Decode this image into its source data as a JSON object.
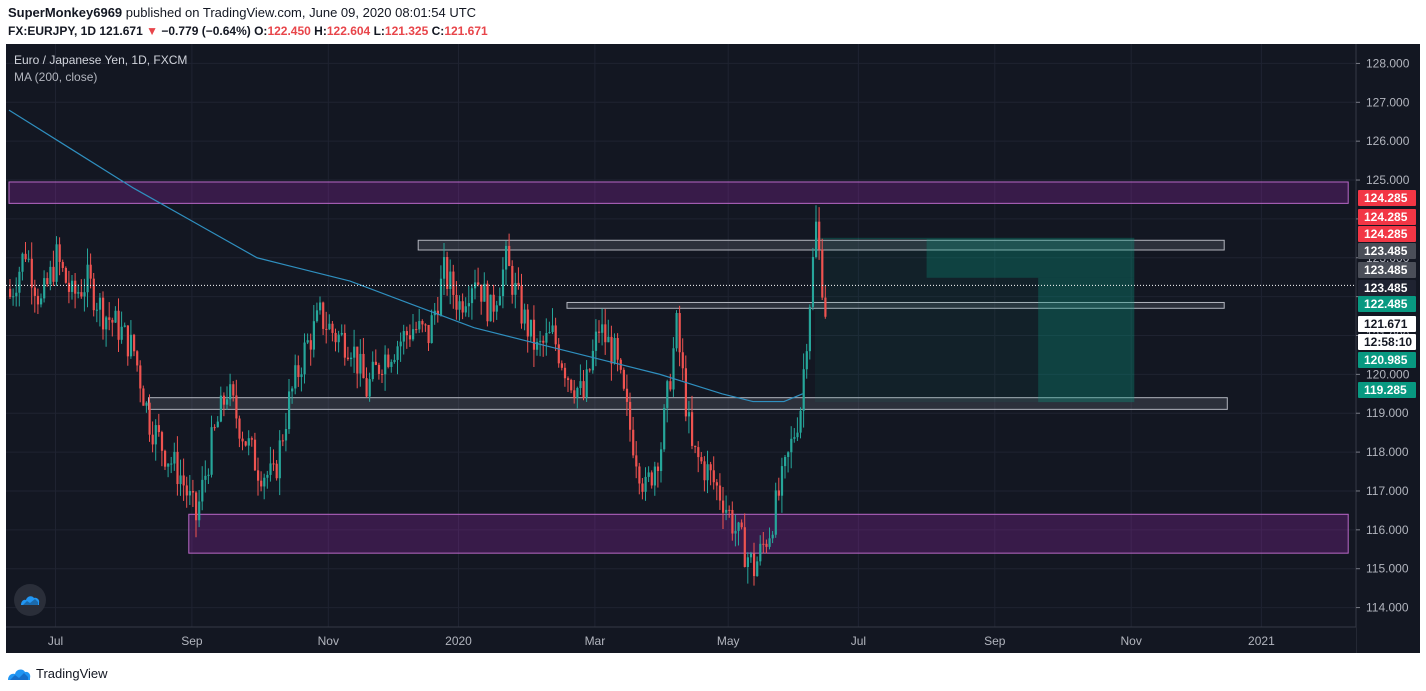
{
  "header": {
    "author": "SuperMonkey6969",
    "published_text": " published on TradingView.com, June 09, 2020 08:01:54 UTC",
    "symbol": "FX:EURJPY, 1D",
    "last": "121.671",
    "change_arrow": "▼",
    "change": "−0.779 (−0.64%)",
    "o_label": "O:",
    "o_value": "122.450",
    "h_label": "H:",
    "h_value": "122.604",
    "l_label": "L:",
    "l_value": "121.325",
    "c_label": "C:",
    "c_value": "121.671"
  },
  "legend": {
    "instrument": "Euro / Japanese Yen, 1D, FXCM",
    "indicator": "MA (200, close)"
  },
  "footer": {
    "brand": "TradingView"
  },
  "colors": {
    "background": "#131722",
    "up": "#26a69a",
    "down": "#ef5350",
    "ma": "#2f8fbf",
    "zone_purple": "#9c27b0",
    "grid": "#1f2331"
  },
  "chart_data": {
    "type": "candlestick",
    "title": "Euro / Japanese Yen, 1D, FXCM",
    "indicator": "MA (200, close)",
    "ylim": [
      113.5,
      128.5
    ],
    "y_ticks": [
      114,
      115,
      116,
      117,
      118,
      119,
      120,
      121,
      122,
      123,
      124,
      125,
      126,
      127,
      128
    ],
    "y_tick_labels": [
      "114.000",
      "115.000",
      "116.000",
      "117.000",
      "118.000",
      "119.000",
      "120.000",
      "121.000",
      "122.000",
      "123.000",
      "124.000",
      "125.000",
      "126.000",
      "127.000",
      "128.000"
    ],
    "x_labels": [
      "Jul",
      "Sep",
      "Nov",
      "2020",
      "Mar",
      "May",
      "Jul",
      "Sep",
      "Nov",
      "2021"
    ],
    "x_label_index": [
      15,
      59,
      103,
      145,
      189,
      232,
      274,
      318,
      362,
      404
    ],
    "close_points": [
      {
        "i": 0,
        "v": 122.0
      },
      {
        "i": 5,
        "v": 123.2
      },
      {
        "i": 10,
        "v": 121.8
      },
      {
        "i": 15,
        "v": 123.0
      },
      {
        "i": 20,
        "v": 122.0
      },
      {
        "i": 25,
        "v": 122.4
      },
      {
        "i": 30,
        "v": 121.6
      },
      {
        "i": 35,
        "v": 121.2
      },
      {
        "i": 40,
        "v": 120.6
      },
      {
        "i": 45,
        "v": 118.8
      },
      {
        "i": 50,
        "v": 118.0
      },
      {
        "i": 55,
        "v": 117.4
      },
      {
        "i": 60,
        "v": 116.3
      },
      {
        "i": 65,
        "v": 118.2
      },
      {
        "i": 70,
        "v": 119.6
      },
      {
        "i": 75,
        "v": 118.5
      },
      {
        "i": 80,
        "v": 117.6
      },
      {
        "i": 85,
        "v": 117.3
      },
      {
        "i": 90,
        "v": 119.3
      },
      {
        "i": 95,
        "v": 120.6
      },
      {
        "i": 100,
        "v": 121.5
      },
      {
        "i": 105,
        "v": 121.0
      },
      {
        "i": 110,
        "v": 120.8
      },
      {
        "i": 115,
        "v": 119.6
      },
      {
        "i": 120,
        "v": 120.4
      },
      {
        "i": 125,
        "v": 120.8
      },
      {
        "i": 130,
        "v": 121.2
      },
      {
        "i": 135,
        "v": 121.0
      },
      {
        "i": 140,
        "v": 122.6
      },
      {
        "i": 145,
        "v": 121.8
      },
      {
        "i": 150,
        "v": 122.6
      },
      {
        "i": 155,
        "v": 121.6
      },
      {
        "i": 160,
        "v": 122.9
      },
      {
        "i": 165,
        "v": 121.6
      },
      {
        "i": 170,
        "v": 120.6
      },
      {
        "i": 175,
        "v": 121.0
      },
      {
        "i": 180,
        "v": 120.0
      },
      {
        "i": 185,
        "v": 119.4
      },
      {
        "i": 190,
        "v": 121.2
      },
      {
        "i": 195,
        "v": 120.5
      },
      {
        "i": 200,
        "v": 118.6
      },
      {
        "i": 205,
        "v": 117.0
      },
      {
        "i": 210,
        "v": 118.2
      },
      {
        "i": 215,
        "v": 121.2
      },
      {
        "i": 220,
        "v": 118.0
      },
      {
        "i": 225,
        "v": 117.5
      },
      {
        "i": 230,
        "v": 116.8
      },
      {
        "i": 235,
        "v": 115.8
      },
      {
        "i": 240,
        "v": 115.0
      },
      {
        "i": 245,
        "v": 116.0
      },
      {
        "i": 250,
        "v": 117.5
      },
      {
        "i": 255,
        "v": 119.2
      },
      {
        "i": 260,
        "v": 123.8
      },
      {
        "i": 263,
        "v": 121.7
      }
    ],
    "ma_points": [
      {
        "i": 0,
        "v": 126.8
      },
      {
        "i": 20,
        "v": 125.8
      },
      {
        "i": 40,
        "v": 124.8
      },
      {
        "i": 60,
        "v": 123.9
      },
      {
        "i": 80,
        "v": 123.0
      },
      {
        "i": 90,
        "v": 122.8
      },
      {
        "i": 110,
        "v": 122.4
      },
      {
        "i": 130,
        "v": 121.8
      },
      {
        "i": 150,
        "v": 121.2
      },
      {
        "i": 170,
        "v": 120.8
      },
      {
        "i": 190,
        "v": 120.4
      },
      {
        "i": 210,
        "v": 120.0
      },
      {
        "i": 230,
        "v": 119.5
      },
      {
        "i": 240,
        "v": 119.3
      },
      {
        "i": 250,
        "v": 119.3
      },
      {
        "i": 256,
        "v": 119.5
      }
    ],
    "zones": [
      {
        "name": "resistance-zone-top",
        "from": 124.4,
        "to": 124.95,
        "i_start": 0,
        "i_end": 432,
        "kind": "purple"
      },
      {
        "name": "support-zone-bottom",
        "from": 115.4,
        "to": 116.4,
        "i_start": 58,
        "i_end": 432,
        "kind": "purple"
      },
      {
        "name": "level-box-1",
        "from": 123.2,
        "to": 123.45,
        "i_start": 132,
        "i_end": 392,
        "kind": "grey"
      },
      {
        "name": "level-box-2",
        "from": 121.7,
        "to": 121.85,
        "i_start": 180,
        "i_end": 392,
        "kind": "grey"
      },
      {
        "name": "level-box-3",
        "from": 119.1,
        "to": 119.4,
        "i_start": 45,
        "i_end": 393,
        "kind": "grey"
      }
    ],
    "position": {
      "entry": 123.485,
      "stop": 124.285,
      "targets": [
        122.485,
        120.985,
        119.285
      ],
      "i_start": 260,
      "i_end": 363
    },
    "price_labels": [
      {
        "value": 124.285,
        "label": "124.285",
        "bg": "#f23645",
        "fg": "#ffffff"
      },
      {
        "value": 124.285,
        "label": "124.285",
        "bg": "#f23645",
        "fg": "#ffffff"
      },
      {
        "value": 124.285,
        "label": "124.285",
        "bg": "#f23645",
        "fg": "#ffffff"
      },
      {
        "value": 123.485,
        "label": "123.485",
        "bg": "#4a4e58",
        "fg": "#ffffff"
      },
      {
        "value": 123.485,
        "label": "123.485",
        "bg": "#4a4e58",
        "fg": "#ffffff"
      },
      {
        "value": 123.485,
        "label": "123.485",
        "bg": "#1f2331",
        "fg": "#ffffff"
      },
      {
        "value": 122.485,
        "label": "122.485",
        "bg": "#089981",
        "fg": "#ffffff"
      },
      {
        "value": 121.671,
        "label": "121.671",
        "bg": "#ffffff",
        "fg": "#131722"
      },
      {
        "value": 121.671,
        "label": "12:58:10",
        "bg": "#ffffff",
        "fg": "#131722"
      },
      {
        "value": 120.985,
        "label": "120.985",
        "bg": "#089981",
        "fg": "#ffffff"
      },
      {
        "value": 119.285,
        "label": "119.285",
        "bg": "#089981",
        "fg": "#ffffff"
      }
    ],
    "current_price": 121.671
  }
}
